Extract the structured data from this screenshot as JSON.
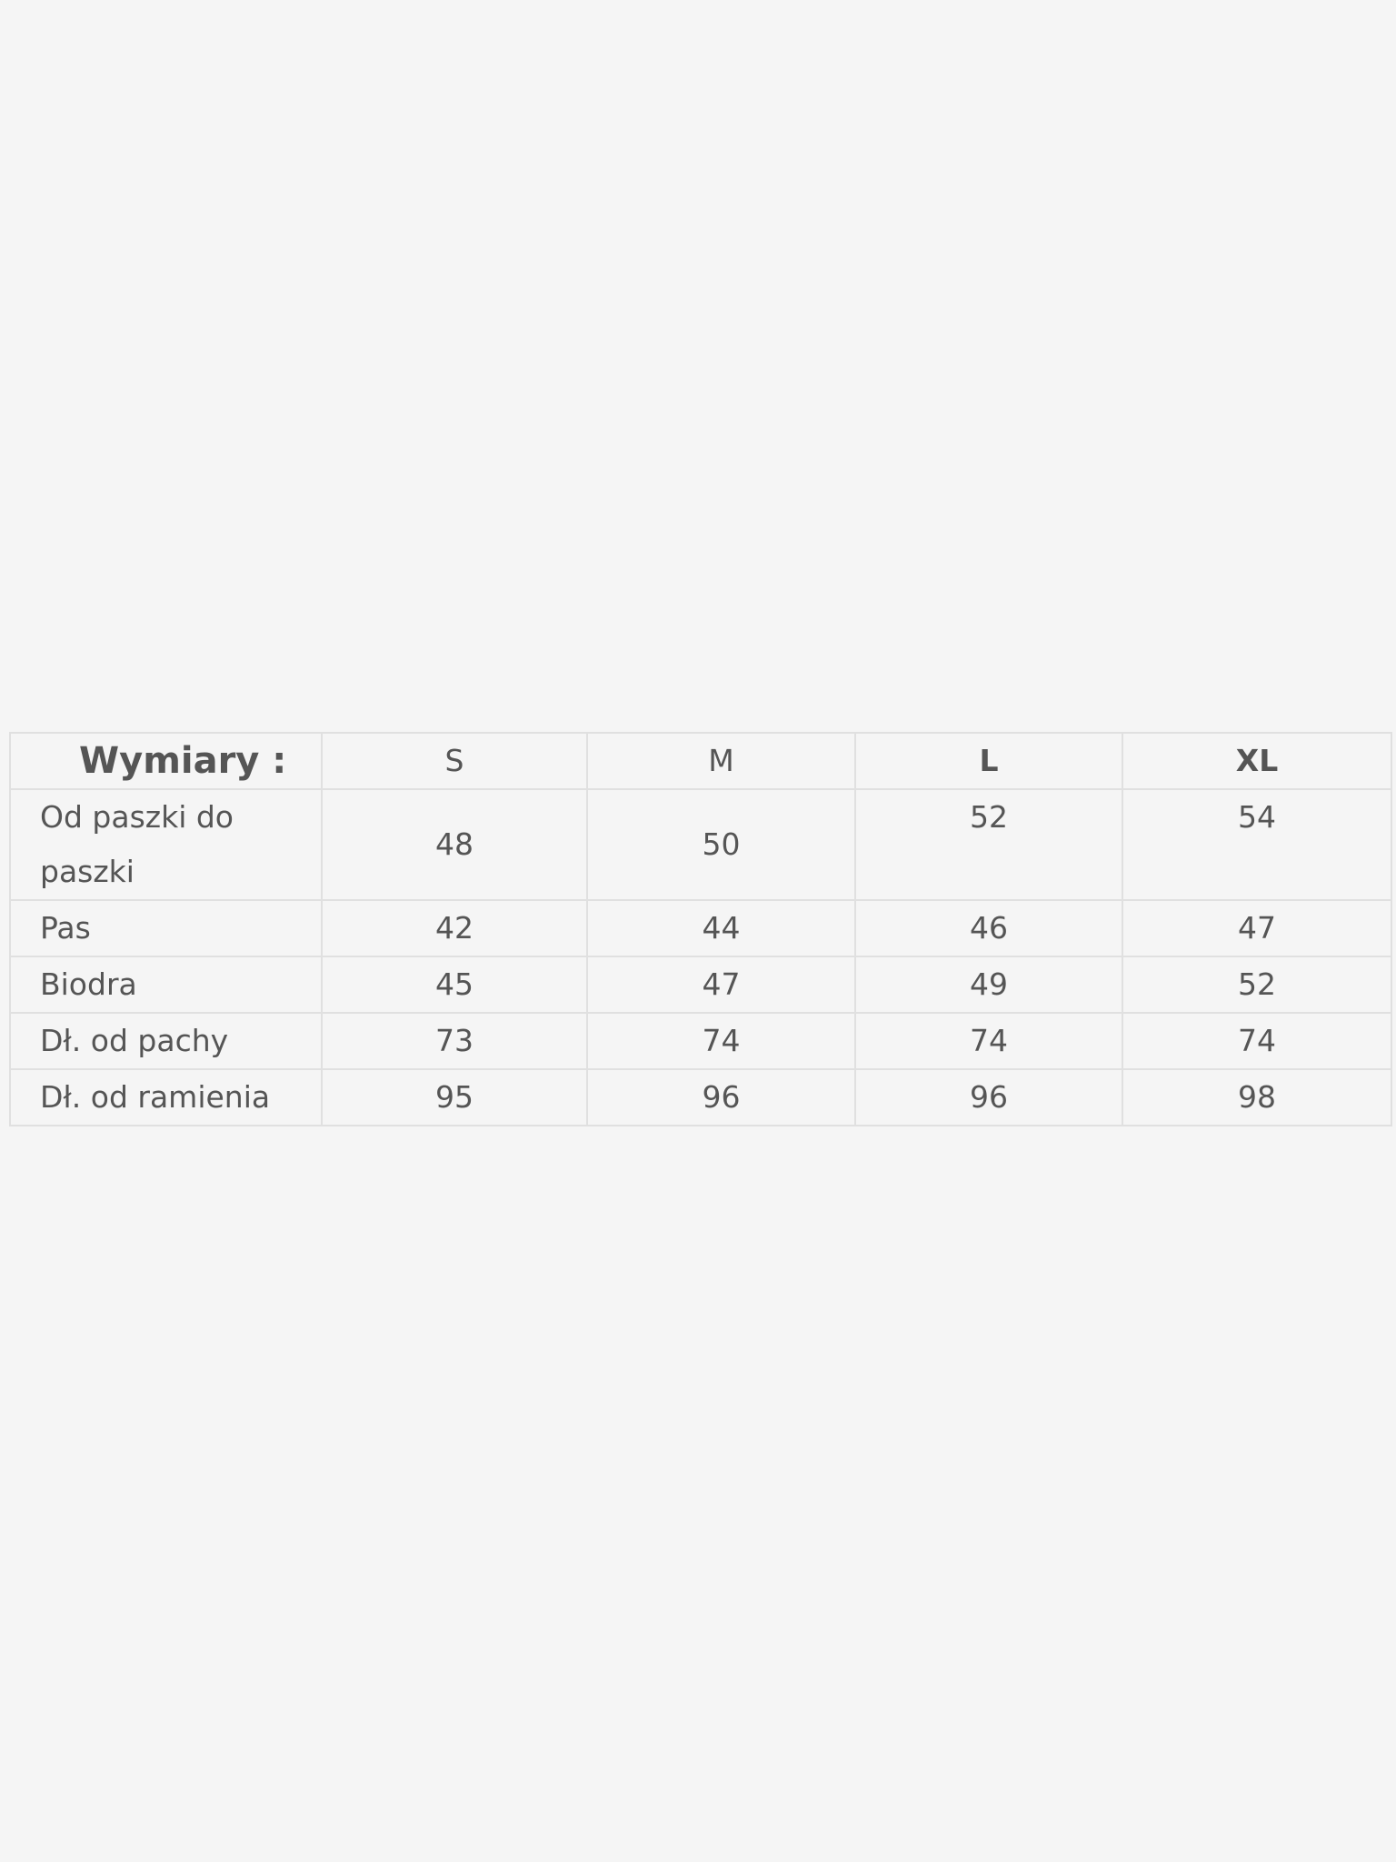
{
  "table": {
    "header": [
      "Wymiary :",
      "S",
      "M",
      "L",
      "XL"
    ],
    "rows": [
      {
        "label": "Od paszki do paszki",
        "values": [
          "48",
          "50",
          "52",
          "54"
        ]
      },
      {
        "label": "Pas",
        "values": [
          "42",
          "44",
          "46",
          "47"
        ]
      },
      {
        "label": "Biodra",
        "values": [
          "45",
          "47",
          "49",
          "52"
        ]
      },
      {
        "label": "Dł. od pachy",
        "values": [
          "73",
          "74",
          "74",
          "74"
        ]
      },
      {
        "label": "Dł. od ramienia",
        "values": [
          "95",
          "96",
          "96",
          "98"
        ]
      }
    ]
  }
}
